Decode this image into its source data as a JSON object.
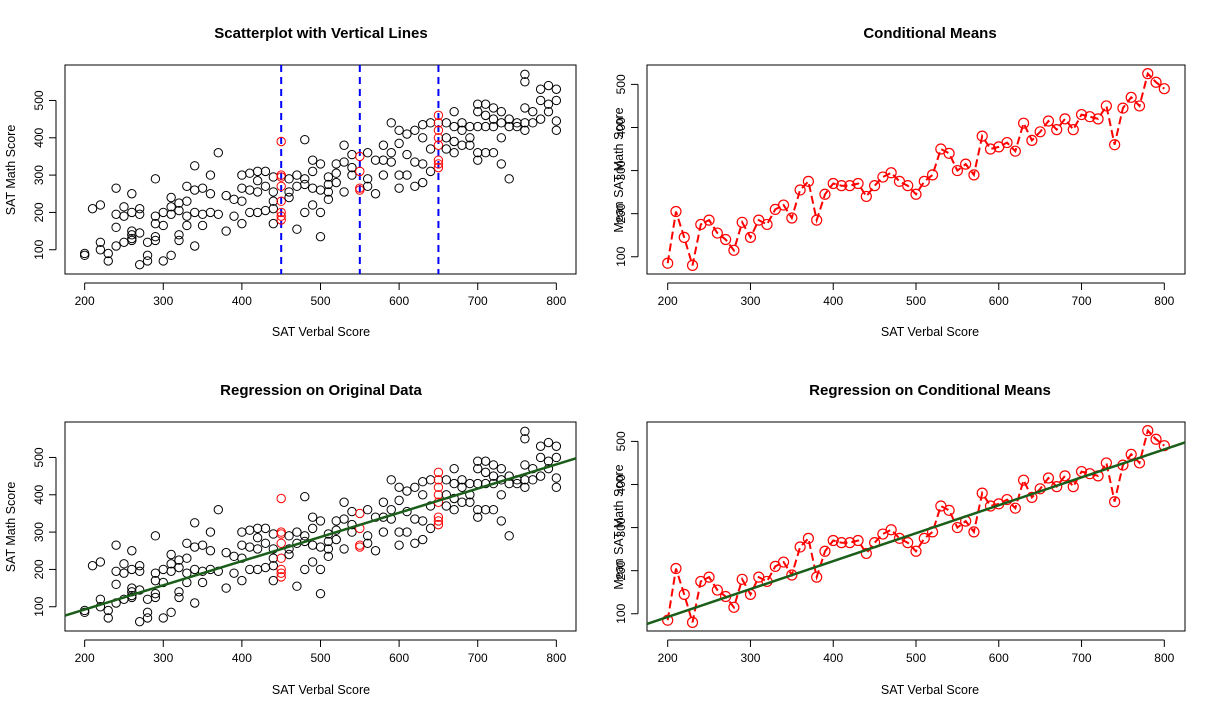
{
  "colors": {
    "points": "#000000",
    "highlight": "#ff0000",
    "vline": "#0000ff",
    "means": "#ff0000",
    "regression": "#1a5e1a"
  },
  "chart_data": [
    {
      "type": "scatter",
      "title": "Scatterplot with Vertical Lines",
      "xlabel": "SAT Verbal Score",
      "ylabel": "SAT Math Score",
      "xlim": [
        175,
        825
      ],
      "ylim": [
        35,
        595
      ],
      "xticks": [
        200,
        300,
        400,
        500,
        600,
        700,
        800
      ],
      "yticks": [
        100,
        200,
        300,
        400,
        500
      ],
      "vlines": [
        450,
        550,
        650
      ],
      "points": [
        [
          200,
          85
        ],
        [
          200,
          90
        ],
        [
          210,
          210
        ],
        [
          220,
          120
        ],
        [
          220,
          100
        ],
        [
          220,
          220
        ],
        [
          230,
          90
        ],
        [
          230,
          70
        ],
        [
          240,
          265
        ],
        [
          240,
          195
        ],
        [
          240,
          160
        ],
        [
          240,
          110
        ],
        [
          250,
          215
        ],
        [
          250,
          190
        ],
        [
          250,
          120
        ],
        [
          260,
          250
        ],
        [
          260,
          200
        ],
        [
          260,
          150
        ],
        [
          260,
          140
        ],
        [
          260,
          130
        ],
        [
          260,
          125
        ],
        [
          270,
          210
        ],
        [
          270,
          195
        ],
        [
          270,
          145
        ],
        [
          270,
          60
        ],
        [
          280,
          120
        ],
        [
          280,
          85
        ],
        [
          280,
          70
        ],
        [
          290,
          290
        ],
        [
          290,
          190
        ],
        [
          290,
          170
        ],
        [
          290,
          135
        ],
        [
          290,
          125
        ],
        [
          300,
          200
        ],
        [
          300,
          165
        ],
        [
          300,
          70
        ],
        [
          310,
          240
        ],
        [
          310,
          215
        ],
        [
          310,
          195
        ],
        [
          310,
          85
        ],
        [
          320,
          225
        ],
        [
          320,
          205
        ],
        [
          320,
          140
        ],
        [
          320,
          125
        ],
        [
          330,
          270
        ],
        [
          330,
          230
        ],
        [
          330,
          190
        ],
        [
          330,
          165
        ],
        [
          340,
          325
        ],
        [
          340,
          260
        ],
        [
          340,
          200
        ],
        [
          340,
          110
        ],
        [
          350,
          265
        ],
        [
          350,
          195
        ],
        [
          350,
          165
        ],
        [
          360,
          300
        ],
        [
          360,
          250
        ],
        [
          360,
          200
        ],
        [
          370,
          360
        ],
        [
          370,
          195
        ],
        [
          380,
          245
        ],
        [
          380,
          150
        ],
        [
          390,
          235
        ],
        [
          390,
          190
        ],
        [
          400,
          300
        ],
        [
          400,
          265
        ],
        [
          400,
          230
        ],
        [
          400,
          170
        ],
        [
          410,
          305
        ],
        [
          410,
          260
        ],
        [
          410,
          200
        ],
        [
          420,
          310
        ],
        [
          420,
          285
        ],
        [
          420,
          255
        ],
        [
          420,
          200
        ],
        [
          430,
          310
        ],
        [
          430,
          270
        ],
        [
          430,
          205
        ],
        [
          440,
          295
        ],
        [
          440,
          255
        ],
        [
          440,
          230
        ],
        [
          440,
          210
        ],
        [
          440,
          170
        ],
        [
          450,
          390
        ],
        [
          450,
          300
        ],
        [
          450,
          295
        ],
        [
          450,
          270
        ],
        [
          450,
          230
        ],
        [
          450,
          200
        ],
        [
          450,
          190
        ],
        [
          450,
          180
        ],
        [
          460,
          290
        ],
        [
          460,
          255
        ],
        [
          460,
          240
        ],
        [
          470,
          300
        ],
        [
          470,
          270
        ],
        [
          470,
          155
        ],
        [
          480,
          395
        ],
        [
          480,
          290
        ],
        [
          480,
          275
        ],
        [
          480,
          200
        ],
        [
          490,
          340
        ],
        [
          490,
          310
        ],
        [
          490,
          265
        ],
        [
          490,
          220
        ],
        [
          500,
          330
        ],
        [
          500,
          260
        ],
        [
          500,
          200
        ],
        [
          500,
          135
        ],
        [
          510,
          295
        ],
        [
          510,
          275
        ],
        [
          510,
          255
        ],
        [
          510,
          235
        ],
        [
          520,
          330
        ],
        [
          520,
          305
        ],
        [
          520,
          280
        ],
        [
          530,
          380
        ],
        [
          530,
          335
        ],
        [
          530,
          255
        ],
        [
          540,
          355
        ],
        [
          540,
          320
        ],
        [
          540,
          300
        ],
        [
          550,
          350
        ],
        [
          550,
          310
        ],
        [
          550,
          265
        ],
        [
          550,
          260
        ],
        [
          560,
          360
        ],
        [
          560,
          290
        ],
        [
          560,
          270
        ],
        [
          570,
          340
        ],
        [
          570,
          250
        ],
        [
          580,
          380
        ],
        [
          580,
          340
        ],
        [
          580,
          300
        ],
        [
          590,
          440
        ],
        [
          590,
          360
        ],
        [
          590,
          335
        ],
        [
          600,
          420
        ],
        [
          600,
          385
        ],
        [
          600,
          300
        ],
        [
          600,
          265
        ],
        [
          610,
          410
        ],
        [
          610,
          355
        ],
        [
          610,
          300
        ],
        [
          620,
          420
        ],
        [
          620,
          335
        ],
        [
          620,
          270
        ],
        [
          630,
          435
        ],
        [
          630,
          400
        ],
        [
          630,
          330
        ],
        [
          630,
          280
        ],
        [
          640,
          440
        ],
        [
          640,
          370
        ],
        [
          640,
          310
        ],
        [
          650,
          460
        ],
        [
          650,
          440
        ],
        [
          650,
          420
        ],
        [
          650,
          400
        ],
        [
          650,
          380
        ],
        [
          650,
          340
        ],
        [
          650,
          330
        ],
        [
          650,
          320
        ],
        [
          660,
          440
        ],
        [
          660,
          400
        ],
        [
          660,
          370
        ],
        [
          670,
          470
        ],
        [
          670,
          430
        ],
        [
          670,
          390
        ],
        [
          670,
          360
        ],
        [
          680,
          440
        ],
        [
          680,
          420
        ],
        [
          680,
          380
        ],
        [
          690,
          430
        ],
        [
          690,
          400
        ],
        [
          690,
          380
        ],
        [
          700,
          490
        ],
        [
          700,
          470
        ],
        [
          700,
          430
        ],
        [
          700,
          360
        ],
        [
          700,
          340
        ],
        [
          710,
          490
        ],
        [
          710,
          460
        ],
        [
          710,
          430
        ],
        [
          710,
          360
        ],
        [
          720,
          480
        ],
        [
          720,
          450
        ],
        [
          720,
          430
        ],
        [
          720,
          360
        ],
        [
          730,
          470
        ],
        [
          730,
          440
        ],
        [
          730,
          400
        ],
        [
          730,
          330
        ],
        [
          740,
          450
        ],
        [
          740,
          430
        ],
        [
          740,
          290
        ],
        [
          750,
          440
        ],
        [
          750,
          430
        ],
        [
          760,
          570
        ],
        [
          760,
          550
        ],
        [
          760,
          480
        ],
        [
          760,
          440
        ],
        [
          760,
          420
        ],
        [
          770,
          470
        ],
        [
          770,
          440
        ],
        [
          780,
          530
        ],
        [
          780,
          500
        ],
        [
          780,
          450
        ],
        [
          790,
          540
        ],
        [
          790,
          490
        ],
        [
          790,
          470
        ],
        [
          800,
          530
        ],
        [
          800,
          500
        ],
        [
          800,
          445
        ],
        [
          800,
          420
        ]
      ]
    },
    {
      "type": "line",
      "title": "Conditional Means",
      "xlabel": "SAT Verbal Score",
      "ylabel": "Mean SAT Math Score",
      "xlim": [
        175,
        825
      ],
      "ylim": [
        60,
        545
      ],
      "xticks": [
        200,
        300,
        400,
        500,
        600,
        700,
        800
      ],
      "yticks": [
        100,
        200,
        300,
        400,
        500
      ],
      "x": [
        200,
        210,
        220,
        230,
        240,
        250,
        260,
        270,
        280,
        290,
        300,
        310,
        320,
        330,
        340,
        350,
        360,
        370,
        380,
        390,
        400,
        410,
        420,
        430,
        440,
        450,
        460,
        470,
        480,
        490,
        500,
        510,
        520,
        530,
        540,
        550,
        560,
        570,
        580,
        590,
        600,
        610,
        620,
        630,
        640,
        650,
        660,
        670,
        680,
        690,
        700,
        710,
        720,
        730,
        740,
        750,
        760,
        770,
        780,
        790,
        800
      ],
      "y": [
        85,
        205,
        145,
        80,
        175,
        185,
        155,
        140,
        115,
        180,
        145,
        185,
        175,
        210,
        220,
        190,
        255,
        275,
        185,
        245,
        270,
        265,
        265,
        270,
        240,
        265,
        285,
        295,
        275,
        265,
        245,
        275,
        290,
        350,
        340,
        300,
        315,
        290,
        380,
        350,
        355,
        365,
        345,
        410,
        370,
        390,
        415,
        395,
        420,
        395,
        430,
        425,
        420,
        450,
        360,
        445,
        470,
        450,
        525,
        505,
        490
      ]
    },
    {
      "type": "scatter",
      "title": "Regression on Original Data",
      "xlabel": "SAT Verbal Score",
      "ylabel": "SAT Math Score",
      "xlim": [
        175,
        825
      ],
      "ylim": [
        35,
        595
      ],
      "xticks": [
        200,
        300,
        400,
        500,
        600,
        700,
        800
      ],
      "yticks": [
        100,
        200,
        300,
        400,
        500
      ],
      "regression": {
        "intercept": -37,
        "slope": 0.648
      },
      "points_ref": 0
    },
    {
      "type": "line",
      "title": "Regression on Conditional Means",
      "xlabel": "SAT Verbal Score",
      "ylabel": "Mean SAT Math Score",
      "xlim": [
        175,
        825
      ],
      "ylim": [
        60,
        545
      ],
      "xticks": [
        200,
        300,
        400,
        500,
        600,
        700,
        800
      ],
      "yticks": [
        100,
        200,
        300,
        400,
        500
      ],
      "regression": {
        "intercept": -37,
        "slope": 0.648
      },
      "points_ref": 1
    }
  ]
}
